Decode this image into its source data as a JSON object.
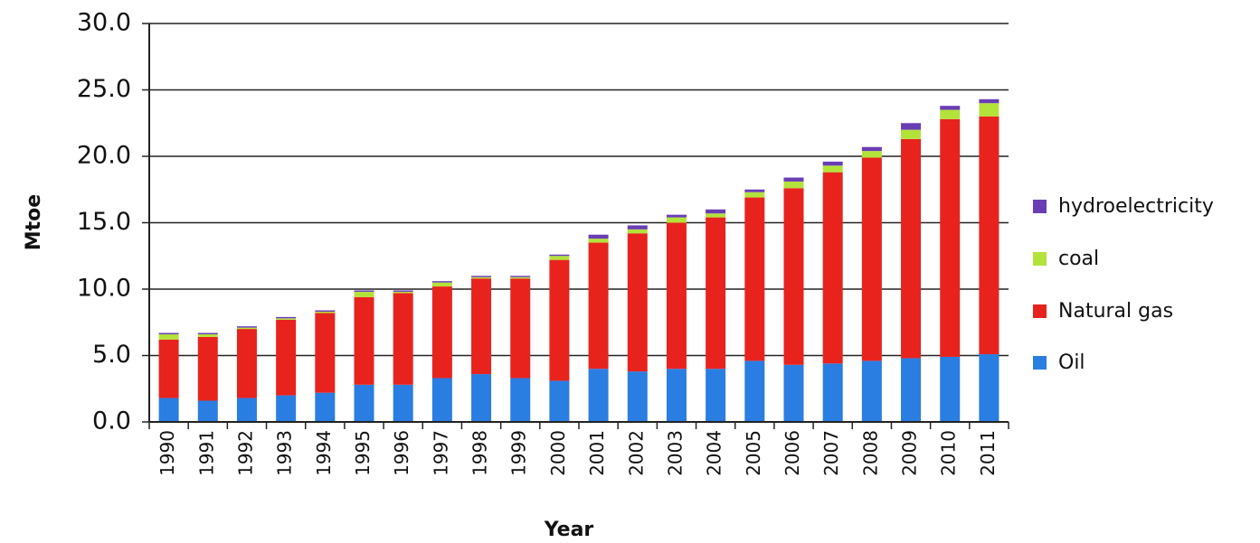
{
  "chart_data": {
    "type": "stacked_bar",
    "x_label": "Year",
    "y_label": "Mtoe",
    "categories": [
      "1990",
      "1991",
      "1992",
      "1993",
      "1994",
      "1995",
      "1996",
      "1997",
      "1998",
      "1999",
      "2000",
      "2001",
      "2002",
      "2003",
      "2004",
      "2005",
      "2006",
      "2007",
      "2008",
      "2009",
      "2010",
      "2011"
    ],
    "series": [
      {
        "name": "Oil",
        "color": "#2a7de1",
        "values": [
          1.8,
          1.6,
          1.8,
          2.0,
          2.2,
          2.8,
          2.8,
          3.3,
          3.6,
          3.3,
          3.1,
          4.0,
          3.8,
          4.0,
          4.0,
          4.6,
          4.3,
          4.4,
          4.6,
          4.8,
          4.9,
          5.1
        ]
      },
      {
        "name": "Natural gas",
        "color": "#e8231d",
        "values": [
          4.4,
          4.8,
          5.2,
          5.7,
          6.0,
          6.6,
          6.9,
          6.9,
          7.2,
          7.5,
          9.1,
          9.5,
          10.4,
          11.0,
          11.4,
          12.3,
          13.3,
          14.4,
          15.3,
          16.5,
          17.9,
          17.9
        ]
      },
      {
        "name": "coal",
        "color": "#b3e23a",
        "values": [
          0.4,
          0.2,
          0.1,
          0.1,
          0.1,
          0.4,
          0.1,
          0.3,
          0.1,
          0.1,
          0.3,
          0.3,
          0.3,
          0.4,
          0.3,
          0.4,
          0.5,
          0.5,
          0.5,
          0.7,
          0.7,
          1.0
        ]
      },
      {
        "name": "hydroelectricity",
        "color": "#6a3db5",
        "values": [
          0.1,
          0.1,
          0.1,
          0.1,
          0.1,
          0.1,
          0.1,
          0.1,
          0.1,
          0.1,
          0.1,
          0.3,
          0.3,
          0.2,
          0.3,
          0.2,
          0.3,
          0.3,
          0.3,
          0.5,
          0.3,
          0.3
        ]
      }
    ],
    "ylim": [
      0,
      30
    ],
    "yticks": [
      {
        "value": 0,
        "label": "0.0"
      },
      {
        "value": 5,
        "label": "5.0"
      },
      {
        "value": 10,
        "label": "10.0"
      },
      {
        "value": 15,
        "label": "15.0"
      },
      {
        "value": 20,
        "label": "20.0"
      },
      {
        "value": 25,
        "label": "25.0"
      },
      {
        "value": 30,
        "label": "30.0"
      }
    ],
    "grid": true
  }
}
